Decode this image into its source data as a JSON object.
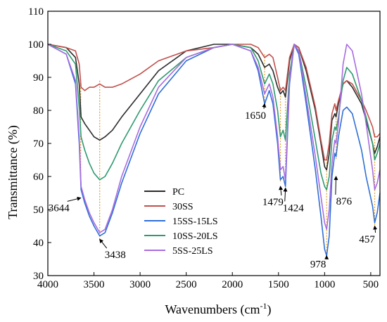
{
  "chart_data": {
    "type": "line",
    "xlabel": "Wavenumbers (cm",
    "xlabel_sup": "-1",
    "xlabel_end": ")",
    "ylabel": "Transmittance (%)",
    "xlim": [
      4000,
      400
    ],
    "ylim": [
      30,
      110
    ],
    "x_reversed": true,
    "x_ticks": [
      4000,
      3500,
      3000,
      2500,
      2000,
      1500,
      1000,
      500
    ],
    "y_ticks": [
      30,
      40,
      50,
      60,
      70,
      80,
      90,
      100,
      110
    ],
    "legend_position": "center-left",
    "series": [
      {
        "name": "PC",
        "color": "#2b2b2b",
        "x": [
          4000,
          3800,
          3700,
          3660,
          3640,
          3600,
          3550,
          3500,
          3438,
          3380,
          3300,
          3200,
          3000,
          2800,
          2500,
          2200,
          2000,
          1800,
          1720,
          1650,
          1600,
          1560,
          1510,
          1479,
          1450,
          1424,
          1380,
          1330,
          1280,
          1200,
          1100,
          1040,
          1000,
          978,
          950,
          920,
          890,
          876,
          850,
          800,
          760,
          700,
          600,
          550,
          480,
          457,
          430,
          400
        ],
        "y": [
          100,
          99,
          96,
          88,
          78,
          76,
          74,
          72,
          71,
          72,
          74,
          78,
          85,
          92,
          98,
          100,
          100,
          99,
          97,
          93,
          94,
          92,
          87,
          85,
          86,
          84,
          95,
          100,
          99,
          92,
          80,
          70,
          63,
          62,
          67,
          77,
          79,
          78,
          82,
          88,
          89,
          87,
          82,
          77,
          70,
          67,
          69,
          72
        ]
      },
      {
        "name": "30SS",
        "color": "#c0504d",
        "x": [
          4000,
          3800,
          3700,
          3660,
          3640,
          3600,
          3550,
          3500,
          3438,
          3380,
          3300,
          3200,
          3000,
          2800,
          2500,
          2200,
          2000,
          1800,
          1720,
          1650,
          1600,
          1560,
          1510,
          1479,
          1450,
          1424,
          1380,
          1330,
          1280,
          1200,
          1100,
          1040,
          1000,
          978,
          950,
          920,
          890,
          876,
          850,
          800,
          760,
          700,
          600,
          550,
          480,
          457,
          430,
          400
        ],
        "y": [
          100,
          99,
          98,
          94,
          87,
          86,
          87,
          87,
          88,
          87,
          87,
          88,
          91,
          95,
          98,
          99,
          100,
          100,
          99,
          96,
          97,
          96,
          90,
          86,
          87,
          86,
          96,
          100,
          99,
          93,
          81,
          71,
          65,
          65,
          70,
          79,
          82,
          80,
          83,
          88,
          89,
          88,
          83,
          80,
          75,
          72,
          72,
          73
        ]
      },
      {
        "name": "15SS-15LS",
        "color": "#2f6fd6",
        "x": [
          4000,
          3800,
          3700,
          3660,
          3640,
          3600,
          3550,
          3500,
          3438,
          3380,
          3300,
          3200,
          3000,
          2800,
          2500,
          2200,
          2000,
          1800,
          1720,
          1650,
          1600,
          1560,
          1510,
          1479,
          1450,
          1424,
          1380,
          1330,
          1280,
          1200,
          1100,
          1040,
          1000,
          978,
          950,
          920,
          890,
          876,
          850,
          800,
          760,
          700,
          600,
          550,
          480,
          457,
          430,
          400
        ],
        "y": [
          100,
          97,
          88,
          70,
          56,
          52,
          48,
          45,
          42,
          43,
          49,
          58,
          73,
          85,
          95,
          99,
          100,
          98,
          92,
          82,
          86,
          82,
          70,
          59,
          60,
          57,
          88,
          100,
          97,
          82,
          62,
          48,
          38,
          36,
          42,
          60,
          67,
          66,
          72,
          80,
          81,
          79,
          68,
          60,
          51,
          46,
          49,
          55
        ]
      },
      {
        "name": "10SS-20LS",
        "color": "#2e9a6f",
        "x": [
          4000,
          3800,
          3700,
          3660,
          3640,
          3600,
          3550,
          3500,
          3438,
          3380,
          3300,
          3200,
          3000,
          2800,
          2500,
          2200,
          2000,
          1800,
          1720,
          1650,
          1600,
          1560,
          1510,
          1479,
          1450,
          1424,
          1380,
          1330,
          1280,
          1200,
          1100,
          1040,
          1000,
          978,
          950,
          920,
          890,
          876,
          850,
          800,
          760,
          700,
          600,
          550,
          480,
          457,
          430,
          400
        ],
        "y": [
          100,
          98,
          94,
          81,
          72,
          68,
          64,
          61,
          59,
          60,
          64,
          70,
          80,
          89,
          96,
          99,
          100,
          99,
          95,
          88,
          91,
          88,
          80,
          72,
          74,
          71,
          91,
          100,
          98,
          87,
          71,
          61,
          57,
          56,
          60,
          71,
          75,
          74,
          78,
          89,
          93,
          91,
          83,
          78,
          70,
          65,
          67,
          70
        ]
      },
      {
        "name": "5SS-25LS",
        "color": "#a86ce0",
        "x": [
          4000,
          3800,
          3700,
          3660,
          3640,
          3600,
          3550,
          3500,
          3438,
          3380,
          3300,
          3200,
          3000,
          2800,
          2500,
          2200,
          2000,
          1800,
          1720,
          1650,
          1600,
          1560,
          1510,
          1479,
          1450,
          1424,
          1380,
          1330,
          1280,
          1200,
          1100,
          1040,
          1000,
          978,
          950,
          920,
          890,
          876,
          850,
          800,
          760,
          700,
          600,
          550,
          480,
          457,
          430,
          400
        ],
        "y": [
          100,
          97,
          89,
          72,
          57,
          53,
          49,
          46,
          43,
          44,
          50,
          60,
          75,
          87,
          96,
          99,
          100,
          98,
          93,
          85,
          88,
          84,
          72,
          62,
          63,
          59,
          89,
          100,
          98,
          84,
          66,
          54,
          46,
          44,
          50,
          64,
          71,
          70,
          76,
          94,
          100,
          98,
          85,
          76,
          62,
          56,
          58,
          62
        ]
      }
    ],
    "markers": [
      3644,
      3438,
      1650,
      1479,
      1424,
      978,
      876,
      457
    ],
    "annotations": [
      {
        "label": "3644",
        "x": 3644,
        "y": 53.5,
        "text_x": 3880,
        "text_y": 49.5
      },
      {
        "label": "3438",
        "x": 3438,
        "y": 41,
        "text_x": 3270,
        "text_y": 35.3
      },
      {
        "label": "1650",
        "x": 1650,
        "y": 82,
        "text_x": 1750,
        "text_y": 77.5
      },
      {
        "label": "1479",
        "x": 1479,
        "y": 57,
        "text_x": 1560,
        "text_y": 51.3
      },
      {
        "label": "1424",
        "x": 1424,
        "y": 56.5,
        "text_x": 1340,
        "text_y": 49.5
      },
      {
        "label": "978",
        "x": 978,
        "y": 36,
        "text_x": 1070,
        "text_y": 32.5
      },
      {
        "label": "876",
        "x": 876,
        "y": 60,
        "text_x": 790,
        "text_y": 51.5
      },
      {
        "label": "457",
        "x": 457,
        "y": 45,
        "text_x": 540,
        "text_y": 40
      }
    ]
  }
}
